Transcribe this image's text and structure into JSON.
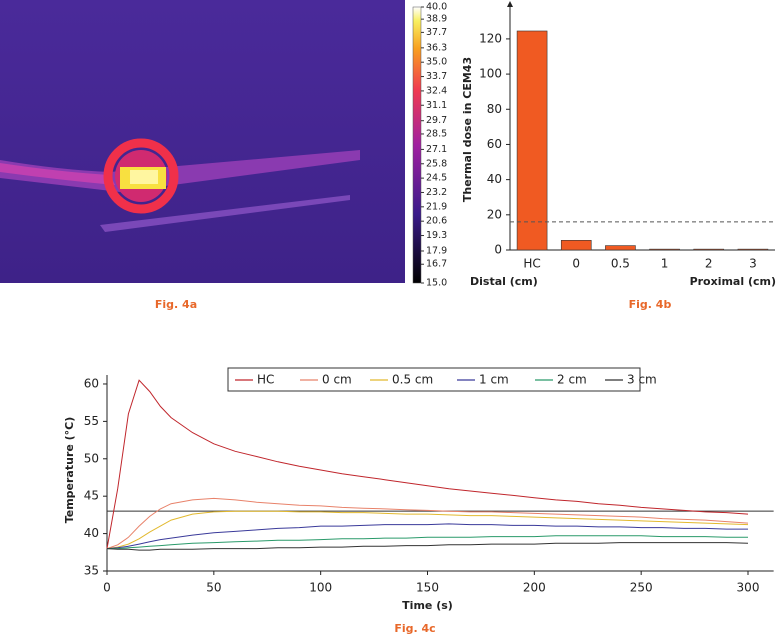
{
  "chart_data": [
    {
      "type": "colorbar",
      "caption": "Fig. 4a",
      "ylim": [
        15,
        40
      ],
      "yticks": [
        {
          "value": 40,
          "label": "40.0"
        },
        38.9,
        37.7,
        36.3,
        {
          "value": 35,
          "label": "35.0"
        },
        33.7,
        32.4,
        31.1,
        29.7,
        28.5,
        27.1,
        25.8,
        24.5,
        23.2,
        21.9,
        20.6,
        19.3,
        17.9,
        16.7,
        {
          "value": 15,
          "label": "15.0"
        }
      ]
    },
    {
      "type": "bar",
      "caption": "Fig. 4b",
      "ylabel": "Thermal dose in CEM43",
      "categories": [
        "HC",
        "0",
        "0.5",
        "1",
        "2",
        "3"
      ],
      "values": [
        124.5,
        5.5,
        2.5,
        0.5,
        0.5,
        0.5
      ],
      "color": "#f05a22",
      "ylim": [
        0,
        137
      ],
      "yticks": [
        0,
        20,
        40,
        60,
        80,
        100,
        120
      ],
      "reference_line": 16,
      "annotations": [
        "Distal (cm)",
        "Proximal (cm)"
      ]
    },
    {
      "type": "line",
      "caption": "Fig. 4c",
      "xlabel": "Time (s)",
      "ylabel": "Temperature (°C)",
      "xlim": [
        0,
        312
      ],
      "ylim": [
        35,
        61.2
      ],
      "xticks": [
        0,
        50,
        100,
        150,
        200,
        250,
        300
      ],
      "yticks": [
        35,
        40,
        45,
        50,
        55,
        60
      ],
      "reference_line": 43,
      "x": [
        0,
        5,
        10,
        15,
        20,
        25,
        30,
        40,
        50,
        60,
        70,
        80,
        90,
        100,
        110,
        120,
        130,
        140,
        150,
        160,
        170,
        180,
        190,
        200,
        210,
        220,
        230,
        240,
        250,
        260,
        270,
        280,
        290,
        300
      ],
      "series": [
        {
          "name": "HC",
          "color": "#c0262c",
          "values": [
            38,
            46,
            56,
            60.5,
            59,
            57,
            55.5,
            53.5,
            52,
            51,
            50.3,
            49.6,
            49,
            48.5,
            48,
            47.6,
            47.2,
            46.8,
            46.4,
            46,
            45.7,
            45.4,
            45.1,
            44.8,
            44.5,
            44.3,
            44,
            43.8,
            43.5,
            43.3,
            43.1,
            42.9,
            42.8,
            42.6
          ]
        },
        {
          "name": "0 cm",
          "color": "#e8826a",
          "values": [
            38,
            38.5,
            39.5,
            41,
            42.3,
            43.3,
            44,
            44.5,
            44.7,
            44.5,
            44.2,
            44,
            43.8,
            43.7,
            43.5,
            43.4,
            43.3,
            43.2,
            43.1,
            43,
            42.9,
            42.9,
            42.8,
            42.7,
            42.6,
            42.5,
            42.4,
            42.3,
            42.2,
            42,
            41.9,
            41.8,
            41.6,
            41.4
          ]
        },
        {
          "name": "0.5 cm",
          "color": "#e2b92e",
          "values": [
            38,
            38.2,
            38.6,
            39.3,
            40.2,
            41,
            41.8,
            42.6,
            42.9,
            43,
            43,
            43,
            42.9,
            42.9,
            42.8,
            42.8,
            42.7,
            42.6,
            42.6,
            42.5,
            42.4,
            42.4,
            42.3,
            42.2,
            42.1,
            42,
            41.9,
            41.8,
            41.7,
            41.6,
            41.5,
            41.4,
            41.3,
            41.2
          ]
        },
        {
          "name": "1 cm",
          "color": "#3a3a9a",
          "values": [
            38,
            38.1,
            38.3,
            38.6,
            38.9,
            39.2,
            39.4,
            39.8,
            40.1,
            40.3,
            40.5,
            40.7,
            40.8,
            41,
            41,
            41.1,
            41.2,
            41.2,
            41.2,
            41.3,
            41.2,
            41.2,
            41.1,
            41.1,
            41,
            41,
            40.9,
            40.9,
            40.8,
            40.8,
            40.7,
            40.7,
            40.6,
            40.6
          ]
        },
        {
          "name": "2 cm",
          "color": "#2a9a6a",
          "values": [
            38,
            38,
            38.1,
            38.2,
            38.3,
            38.4,
            38.5,
            38.7,
            38.8,
            38.9,
            39,
            39.1,
            39.1,
            39.2,
            39.3,
            39.3,
            39.4,
            39.4,
            39.5,
            39.5,
            39.5,
            39.6,
            39.6,
            39.6,
            39.7,
            39.7,
            39.7,
            39.7,
            39.7,
            39.6,
            39.6,
            39.6,
            39.5,
            39.5
          ]
        },
        {
          "name": "3 cm",
          "color": "#333333",
          "values": [
            38,
            37.9,
            37.9,
            37.8,
            37.8,
            37.9,
            37.9,
            37.9,
            38,
            38,
            38,
            38.1,
            38.1,
            38.2,
            38.2,
            38.3,
            38.3,
            38.4,
            38.4,
            38.5,
            38.5,
            38.6,
            38.6,
            38.6,
            38.7,
            38.7,
            38.7,
            38.8,
            38.8,
            38.8,
            38.8,
            38.8,
            38.8,
            38.7
          ]
        }
      ]
    }
  ]
}
